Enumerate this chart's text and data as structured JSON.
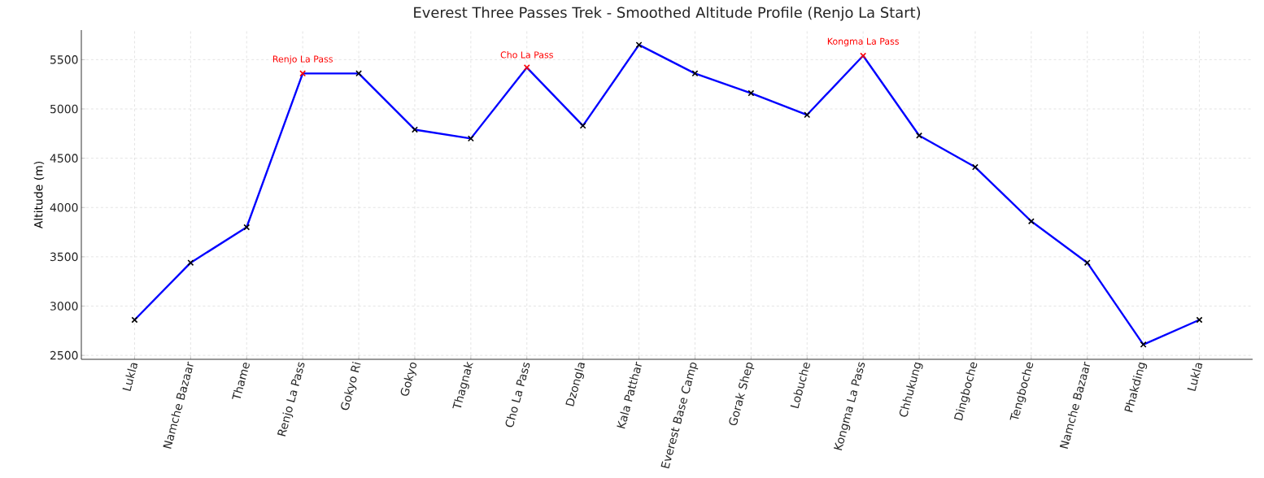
{
  "chart_data": {
    "type": "line",
    "title": "Everest Three Passes Trek - Smoothed Altitude Profile (Renjo La Start)",
    "ylabel": "Altitude (m)",
    "categories": [
      "Lukla",
      "Namche Bazaar",
      "Thame",
      "Renjo La Pass",
      "Gokyo Ri",
      "Gokyo",
      "Thagnak",
      "Cho La Pass",
      "Dzongla",
      "Kala Patthar",
      "Everest Base Camp",
      "Gorak Shep",
      "Lobuche",
      "Kongma La Pass",
      "Chhukung",
      "Dingboche",
      "Tengboche",
      "Namche Bazaar",
      "Phakding",
      "Lukla"
    ],
    "series": [
      {
        "color": "#0000ff",
        "marker": "none",
        "values": [
          2860,
          3440,
          3800,
          5360,
          5360,
          4790,
          4700,
          5420,
          4830,
          5650,
          5360,
          5160,
          4940,
          5540,
          4730,
          4410,
          3860,
          3440,
          2610,
          2860
        ]
      },
      {
        "type": "scatter",
        "color": "#000000",
        "marker": "cross",
        "values": [
          2860,
          3440,
          3800,
          null,
          5360,
          4790,
          4700,
          null,
          4830,
          5650,
          5360,
          5160,
          4940,
          null,
          4730,
          4410,
          3860,
          3440,
          2610,
          2860
        ]
      },
      {
        "type": "scatter",
        "color": "#ff0000",
        "marker": "cross",
        "values": [
          null,
          null,
          null,
          5360,
          null,
          null,
          null,
          5420,
          null,
          null,
          null,
          null,
          null,
          5540,
          null,
          null,
          null,
          null,
          null,
          null
        ]
      }
    ],
    "annotations": [
      {
        "text": "Renjo La Pass",
        "x": "Renjo La Pass",
        "y": 5360
      },
      {
        "text": "Cho La Pass",
        "x": "Cho La Pass",
        "y": 5420
      },
      {
        "text": "Kongma La Pass",
        "x": "Kongma La Pass",
        "y": 5540
      }
    ],
    "ylim": [
      2460,
      5800
    ],
    "yticks": [
      2500,
      3000,
      3500,
      4000,
      4500,
      5000,
      5500
    ],
    "grid": true
  }
}
